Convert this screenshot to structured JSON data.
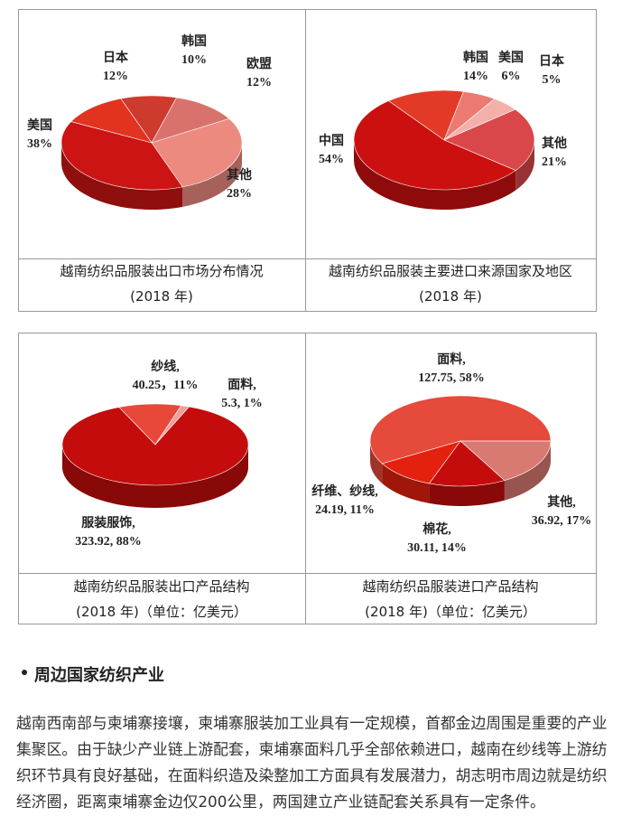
{
  "chart_data": [
    {
      "type": "pie",
      "title": "越南纺织品服装出口市场分布情况",
      "subtitle": "(2018 年)",
      "categories": [
        "韩国",
        "欧盟",
        "其他",
        "美国",
        "日本"
      ],
      "values": [
        10,
        12,
        28,
        38,
        12
      ],
      "value_labels": [
        "10%",
        "12%",
        "28%",
        "38%",
        "12%"
      ],
      "colors": [
        "#cf3a2e",
        "#d9726c",
        "#ec8a80",
        "#cc1414",
        "#e2331f"
      ]
    },
    {
      "type": "pie",
      "title": "越南纺织品服装主要进口来源国家及地区",
      "subtitle": "(2018 年)",
      "categories": [
        "韩国",
        "美国",
        "日本",
        "其他",
        "中国"
      ],
      "values": [
        14,
        6,
        5,
        21,
        54
      ],
      "value_labels": [
        "14%",
        "6%",
        "5%",
        "21%",
        "54%"
      ],
      "colors": [
        "#e23a26",
        "#ec7a70",
        "#f3b0aa",
        "#d9474a",
        "#cc1010"
      ]
    },
    {
      "type": "pie",
      "title": "越南纺织品服装出口产品结构",
      "subtitle": "(2018 年)（单位：亿美元）",
      "categories": [
        "纱线,",
        "面料,",
        "服装服饰,"
      ],
      "values": [
        40.25,
        5.3,
        323.92
      ],
      "value_labels": [
        "40.25，11%",
        "5.3, 1%",
        "323.92, 88%"
      ],
      "colors": [
        "#e8483a",
        "#f0a098",
        "#c40c0c"
      ]
    },
    {
      "type": "pie",
      "title": "越南纺织品服装进口产品结构",
      "subtitle": "(2018 年)（单位：亿美元）",
      "categories": [
        "面料,",
        "其他,",
        "棉花,",
        "纤维、纱线,"
      ],
      "values": [
        127.75,
        36.92,
        30.11,
        24.19
      ],
      "value_labels": [
        "127.75, 58%",
        "36.92, 17%",
        "30.11, 14%",
        "24.19, 11%"
      ],
      "colors": [
        "#e64a3a",
        "#d97a72",
        "#c40c0c",
        "#e4200e"
      ]
    }
  ],
  "section": {
    "heading": "周边国家纺织产业",
    "paragraph": "越南西南部与柬埔寨接壤，柬埔寨服装加工业具有一定规模，首都金边周围是重要的产业集聚区。由于缺少产业链上游配套，柬埔寨面料几乎全部依赖进口，越南在纱线等上游纺织环节具有良好基础，在面料织造及染整加工方面具有发展潜力，胡志明市周边就是纺织经济圈，距离柬埔寨金边仅200公里，两国建立产业链配套关系具有一定条件。"
  }
}
